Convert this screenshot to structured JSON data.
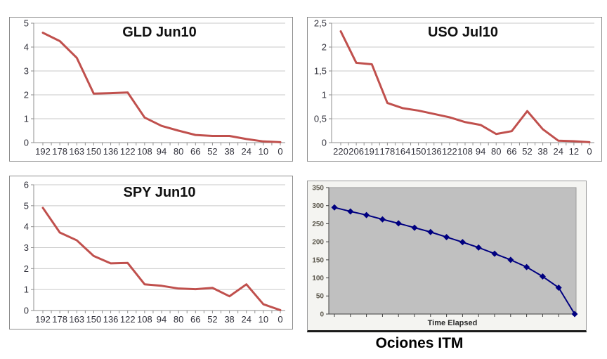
{
  "colors": {
    "grid": "#c9c9c9",
    "axis": "#8f8f8f",
    "tick_label": "#31313b",
    "title": "#111111",
    "line_red": "#c0504d",
    "line_navy": "#000080",
    "panel_border": "#8c8c8c",
    "itm_panel_bg": "#f4f4f1",
    "itm_plot_bg": "#c0c0c0",
    "itm_plot_border": "#9b9b9b",
    "itm_axis": "#3f3f3f",
    "itm_label": "#5b574c",
    "itm_xlabel": "#2b2b2b",
    "itm_bottom_border": "#1a1a1a"
  },
  "chart_data": [
    {
      "type": "line",
      "title": "GLD Jun10",
      "xlabel": "",
      "ylabel": "",
      "x_labels": [
        "192",
        "178",
        "163",
        "150",
        "136",
        "122",
        "108",
        "94",
        "80",
        "66",
        "52",
        "38",
        "24",
        "10",
        "0"
      ],
      "values": [
        4.6,
        4.25,
        3.55,
        2.05,
        2.07,
        2.1,
        1.05,
        0.7,
        0.5,
        0.32,
        0.28,
        0.28,
        0.15,
        0.05,
        0.02
      ],
      "ylim": [
        0,
        5
      ],
      "y_tick_values": [
        0,
        1,
        2,
        3,
        4,
        5
      ],
      "y_tick_labels": [
        "0",
        "1",
        "2",
        "3",
        "4",
        "5"
      ],
      "line_color": "#c0504d",
      "grid": true,
      "legend": "none"
    },
    {
      "type": "line",
      "title": "USO Jul10",
      "xlabel": "",
      "ylabel": "",
      "x_labels": [
        "220",
        "206",
        "191",
        "178",
        "164",
        "150",
        "136",
        "122",
        "108",
        "94",
        "80",
        "66",
        "52",
        "38",
        "24",
        "12",
        "0"
      ],
      "values": [
        2.33,
        1.67,
        1.64,
        0.83,
        0.72,
        0.67,
        0.6,
        0.53,
        0.43,
        0.37,
        0.18,
        0.24,
        0.66,
        0.28,
        0.04,
        0.03,
        0.01
      ],
      "ylim": [
        0,
        2.5
      ],
      "y_tick_values": [
        0,
        0.5,
        1,
        1.5,
        2,
        2.5
      ],
      "y_tick_labels": [
        "0",
        "0,5",
        "1",
        "1,5",
        "2",
        "2,5"
      ],
      "line_color": "#c0504d",
      "grid": true,
      "legend": "none"
    },
    {
      "type": "line",
      "title": "SPY Jun10",
      "xlabel": "",
      "ylabel": "",
      "x_labels": [
        "192",
        "178",
        "163",
        "150",
        "136",
        "122",
        "108",
        "94",
        "80",
        "66",
        "52",
        "38",
        "24",
        "10",
        "0"
      ],
      "values": [
        4.9,
        3.72,
        3.35,
        2.6,
        2.25,
        2.27,
        1.25,
        1.18,
        1.05,
        1.02,
        1.08,
        0.68,
        1.25,
        0.3,
        0.02
      ],
      "ylim": [
        0,
        6
      ],
      "y_tick_values": [
        0,
        1,
        2,
        3,
        4,
        5,
        6
      ],
      "y_tick_labels": [
        "0",
        "1",
        "2",
        "3",
        "4",
        "5",
        "6"
      ],
      "line_color": "#c0504d",
      "grid": true,
      "legend": "none"
    },
    {
      "type": "line",
      "title": "Ociones ITM",
      "xlabel": "Time Elapsed",
      "ylabel": "",
      "values": [
        295,
        284,
        274,
        262,
        251,
        239,
        227,
        213,
        199,
        184,
        167,
        150,
        130,
        104,
        73,
        0
      ],
      "ylim": [
        0,
        350
      ],
      "y_tick_values": [
        0,
        50,
        100,
        150,
        200,
        250,
        300,
        350
      ],
      "y_tick_labels": [
        "0",
        "50",
        "100",
        "150",
        "200",
        "250",
        "300",
        "350"
      ],
      "line_color": "#000080",
      "marker": "diamond",
      "plot_bg": "#c0c0c0",
      "grid": false,
      "legend": "none"
    }
  ]
}
